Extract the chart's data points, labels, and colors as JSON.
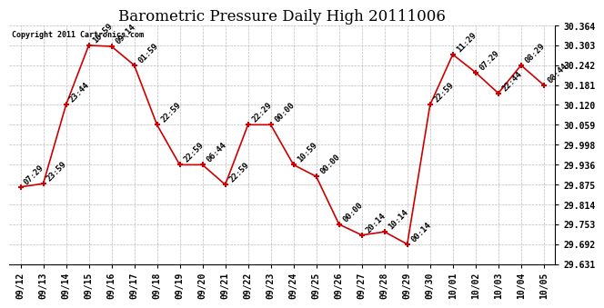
{
  "title": "Barometric Pressure Daily High 20111006",
  "copyright_text": "Copyright 2011 Cartronics.com",
  "x_labels": [
    "09/12",
    "09/13",
    "09/14",
    "09/15",
    "09/16",
    "09/17",
    "09/18",
    "09/19",
    "09/20",
    "09/21",
    "09/22",
    "09/23",
    "09/24",
    "09/25",
    "09/26",
    "09/27",
    "09/28",
    "09/29",
    "09/30",
    "10/01",
    "10/02",
    "10/03",
    "10/04",
    "10/05"
  ],
  "y_values": [
    29.868,
    29.878,
    30.12,
    30.303,
    30.3,
    30.242,
    30.059,
    29.936,
    29.936,
    29.875,
    30.059,
    30.059,
    29.936,
    29.9,
    29.753,
    29.72,
    29.73,
    29.692,
    30.12,
    30.275,
    30.22,
    30.156,
    30.242,
    30.181
  ],
  "time_labels": [
    "07:29",
    "23:59",
    "23:44",
    "10:59",
    "09:14",
    "01:59",
    "22:59",
    "22:59",
    "06:44",
    "22:59",
    "22:29",
    "00:00",
    "10:59",
    "00:00",
    "00:00",
    "20:14",
    "10:14",
    "00:14",
    "22:59",
    "11:29",
    "07:29",
    "22:44",
    "08:29",
    "08:44"
  ],
  "line_color": "#cc0000",
  "marker_color": "#cc0000",
  "background_color": "#ffffff",
  "grid_color": "#bbbbbb",
  "title_fontsize": 12,
  "tick_fontsize": 7,
  "label_fontsize": 6.5,
  "ylim_min": 29.631,
  "ylim_max": 30.364,
  "yticks": [
    29.631,
    29.692,
    29.753,
    29.814,
    29.875,
    29.936,
    29.998,
    30.059,
    30.12,
    30.181,
    30.242,
    30.303,
    30.364
  ]
}
